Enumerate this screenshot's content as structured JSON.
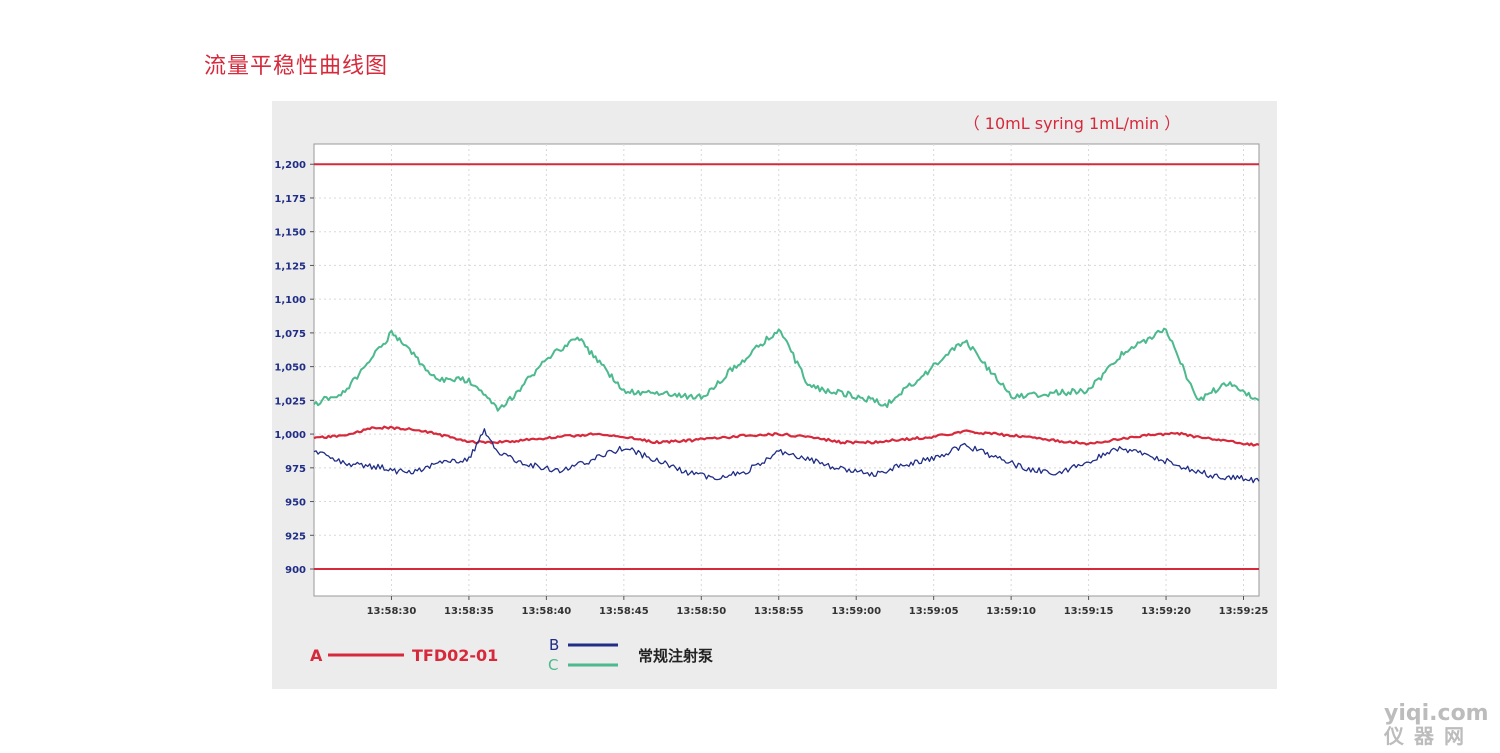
{
  "page": {
    "title": "流量平稳性曲线图"
  },
  "watermark": {
    "line1": "yiqi.com",
    "line2": "仪器网"
  },
  "colors": {
    "title": "#d62a3c",
    "A": "#d62a3c",
    "B": "#1f2d86",
    "C": "#4cb98e",
    "limit": "#d62a3c",
    "tick_y": "#1f2d86",
    "tick_x": "#333333",
    "panel": "#ececec",
    "plot_bg": "#ffffff",
    "grid": "#d8d8d8"
  },
  "chart_data": {
    "type": "line",
    "annotation": "（ 10mL  syring   1mL/min ）",
    "xlabel": "",
    "ylabel": "",
    "ylim": [
      880,
      1215
    ],
    "yticks": [
      900,
      925,
      950,
      975,
      1000,
      1025,
      1050,
      1075,
      1100,
      1125,
      1150,
      1175,
      1200
    ],
    "ytick_labels": [
      "900",
      "925",
      "950",
      "975",
      "1,000",
      "1,025",
      "1,050",
      "1,075",
      "1,100",
      "1,125",
      "1,150",
      "1,175",
      "1,200"
    ],
    "x_range_seconds": [
      "13:58:25",
      "13:59:26"
    ],
    "xtick_labels": [
      "13:58:30",
      "13:58:35",
      "13:58:40",
      "13:58:45",
      "13:58:50",
      "13:58:55",
      "13:59:00",
      "13:59:05",
      "13:59:10",
      "13:59:15",
      "13:59:20",
      "13:59:25"
    ],
    "grid": true,
    "reference_lines": [
      {
        "y": 1200
      },
      {
        "y": 900
      }
    ],
    "series": [
      {
        "key": "A",
        "legend_letter": "A",
        "name": "TFD02-01",
        "color_key": "A",
        "times": [
          "13:58:25",
          "13:58:27",
          "13:58:29",
          "13:58:31",
          "13:58:33",
          "13:58:35",
          "13:58:37",
          "13:58:39",
          "13:58:41",
          "13:58:43",
          "13:58:45",
          "13:58:47",
          "13:58:49",
          "13:58:51",
          "13:58:53",
          "13:58:55",
          "13:58:57",
          "13:58:59",
          "13:59:01",
          "13:59:03",
          "13:59:05",
          "13:59:07",
          "13:59:09",
          "13:59:11",
          "13:59:13",
          "13:59:15",
          "13:59:17",
          "13:59:19",
          "13:59:21",
          "13:59:23",
          "13:59:25",
          "13:59:26"
        ],
        "values": [
          997,
          999,
          1005,
          1004,
          1000,
          994,
          994,
          996,
          998,
          1000,
          998,
          994,
          995,
          997,
          999,
          1000,
          998,
          994,
          994,
          996,
          998,
          1002,
          1000,
          998,
          995,
          993,
          996,
          1000,
          1000,
          996,
          993,
          992
        ]
      },
      {
        "key": "B",
        "legend_letter": "B",
        "name": "常规注射泵",
        "color_key": "B",
        "times": [
          "13:58:25",
          "13:58:27",
          "13:58:29",
          "13:58:31",
          "13:58:33",
          "13:58:35",
          "13:58:36",
          "13:58:37",
          "13:58:39",
          "13:58:41",
          "13:58:43",
          "13:58:45",
          "13:58:47",
          "13:58:49",
          "13:58:51",
          "13:58:53",
          "13:58:55",
          "13:58:57",
          "13:58:59",
          "13:59:01",
          "13:59:03",
          "13:59:05",
          "13:59:07",
          "13:59:09",
          "13:59:11",
          "13:59:13",
          "13:59:15",
          "13:59:17",
          "13:59:19",
          "13:59:21",
          "13:59:23",
          "13:59:25",
          "13:59:26"
        ],
        "values": [
          987,
          978,
          976,
          971,
          978,
          982,
          1002,
          985,
          977,
          973,
          981,
          990,
          981,
          972,
          967,
          973,
          987,
          981,
          974,
          970,
          977,
          982,
          992,
          983,
          974,
          971,
          980,
          990,
          984,
          976,
          969,
          967,
          965
        ]
      },
      {
        "key": "C",
        "legend_letter": "C",
        "name": "常规注射泵",
        "color_key": "C",
        "times": [
          "13:58:25",
          "13:58:27",
          "13:58:30",
          "13:58:33",
          "13:58:35",
          "13:58:37",
          "13:58:40",
          "13:58:42",
          "13:58:45",
          "13:58:47",
          "13:58:50",
          "13:58:52",
          "13:58:55",
          "13:58:57",
          "13:59:00",
          "13:59:02",
          "13:59:05",
          "13:59:07",
          "13:59:10",
          "13:59:12",
          "13:59:15",
          "13:59:17",
          "13:59:20",
          "13:59:22",
          "13:59:24",
          "13:59:26"
        ],
        "values": [
          1022,
          1032,
          1075,
          1040,
          1040,
          1018,
          1055,
          1072,
          1032,
          1030,
          1027,
          1048,
          1078,
          1035,
          1028,
          1022,
          1050,
          1070,
          1028,
          1030,
          1032,
          1058,
          1078,
          1025,
          1038,
          1025
        ]
      }
    ]
  }
}
